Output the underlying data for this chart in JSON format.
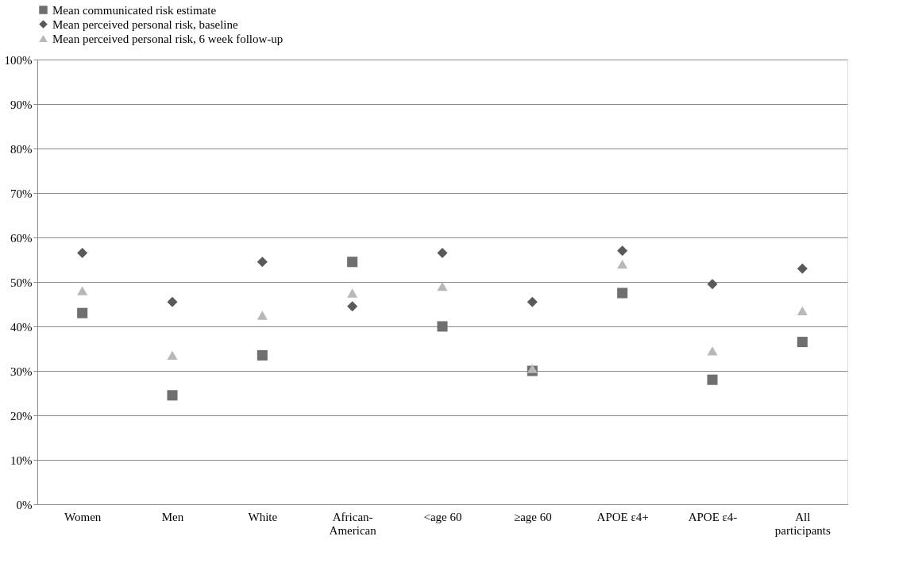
{
  "chart_data": {
    "type": "scatter",
    "categories": [
      "Women",
      "Men",
      "White",
      "African- American",
      "<age 60",
      "≥age 60",
      "APOE ε4+",
      "APOE ε4-",
      "All participants"
    ],
    "series": [
      {
        "name": "Mean communicated risk estimate",
        "color": "#6f6f6f",
        "marker": "square",
        "values": [
          43,
          24.5,
          33.5,
          54.5,
          40,
          30,
          47.5,
          28,
          36.5
        ]
      },
      {
        "name": "Mean perceived personal risk, baseline",
        "color": "#595959",
        "marker": "diamond",
        "values": [
          56.5,
          45.5,
          54.5,
          44.5,
          56.5,
          45.5,
          57,
          49.5,
          53
        ]
      },
      {
        "name": "Mean perceived personal risk, 6 week follow-up",
        "color": "#b8b8b8",
        "marker": "triangle",
        "values": [
          48,
          33.5,
          42.5,
          47.5,
          49,
          30.5,
          54,
          34.5,
          43.5
        ]
      }
    ],
    "ylim": [
      0,
      100
    ],
    "yticks": [
      {
        "value": 0,
        "label": "0%"
      },
      {
        "value": 10,
        "label": "10%"
      },
      {
        "value": 20,
        "label": "20%"
      },
      {
        "value": 30,
        "label": "30%"
      },
      {
        "value": 40,
        "label": "40%"
      },
      {
        "value": 50,
        "label": "50%"
      },
      {
        "value": 60,
        "label": "60%"
      },
      {
        "value": 70,
        "label": "70%"
      },
      {
        "value": 80,
        "label": "80%"
      },
      {
        "value": 90,
        "label": "90%"
      },
      {
        "value": 100,
        "label": "100%"
      }
    ],
    "grid": "y",
    "legend": "top"
  }
}
